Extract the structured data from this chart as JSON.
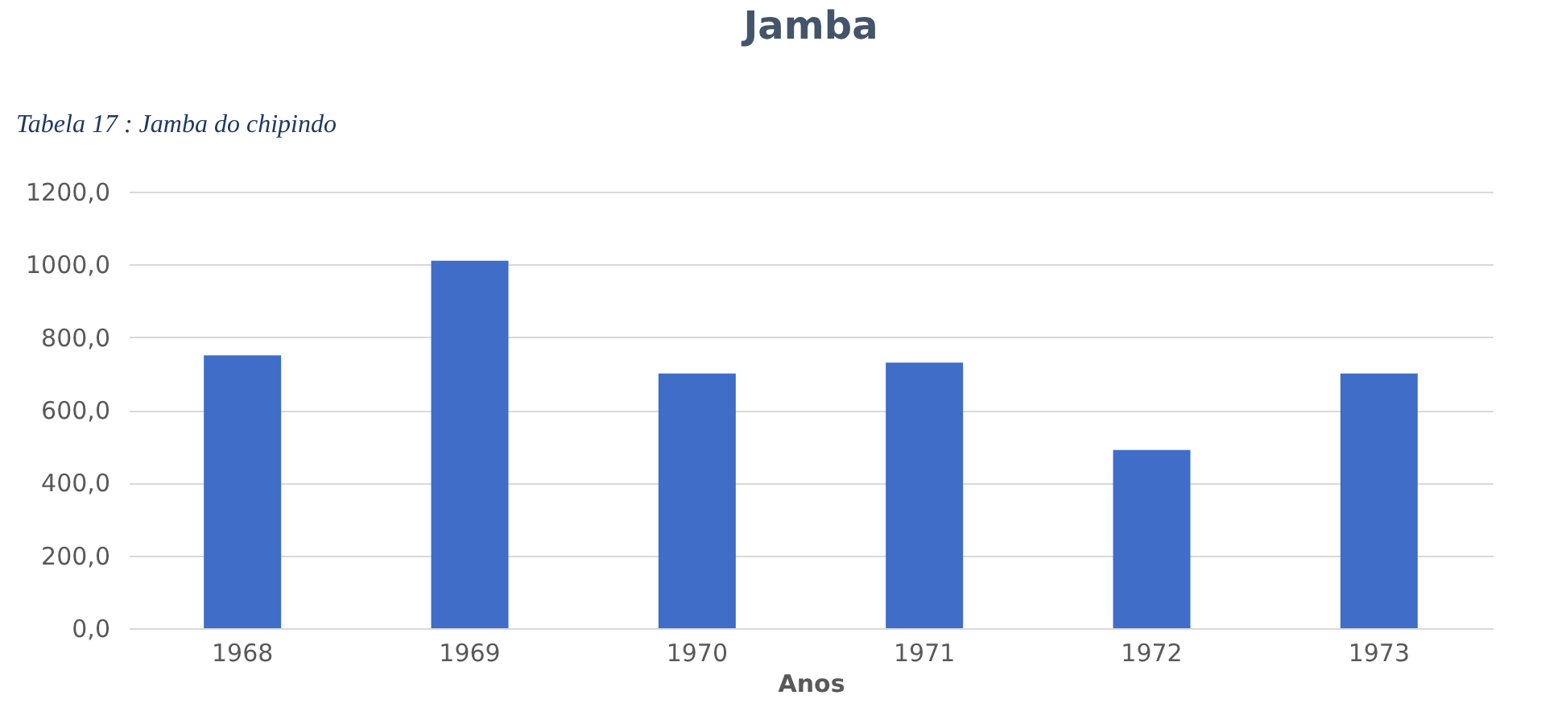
{
  "chart_data": {
    "type": "bar",
    "title": "Jamba",
    "xlabel": "Anos",
    "annotations": [
      "Tabela 17 : Jamba do chipindo"
    ],
    "categories": [
      "1968",
      "1969",
      "1970",
      "1971",
      "1972",
      "1973"
    ],
    "values": [
      750,
      1010,
      700,
      730,
      490,
      700
    ],
    "color": "#3f6dc8",
    "ylim": [
      0,
      1200
    ],
    "yticks": [
      {
        "value": 0,
        "label": "0,0"
      },
      {
        "value": 200,
        "label": "200,0"
      },
      {
        "value": 400,
        "label": "400,0"
      },
      {
        "value": 600,
        "label": "600,0"
      },
      {
        "value": 800,
        "label": "800,0"
      },
      {
        "value": 1000,
        "label": "1000,0"
      },
      {
        "value": 1200,
        "label": "1200,0"
      }
    ],
    "grid": "y"
  }
}
